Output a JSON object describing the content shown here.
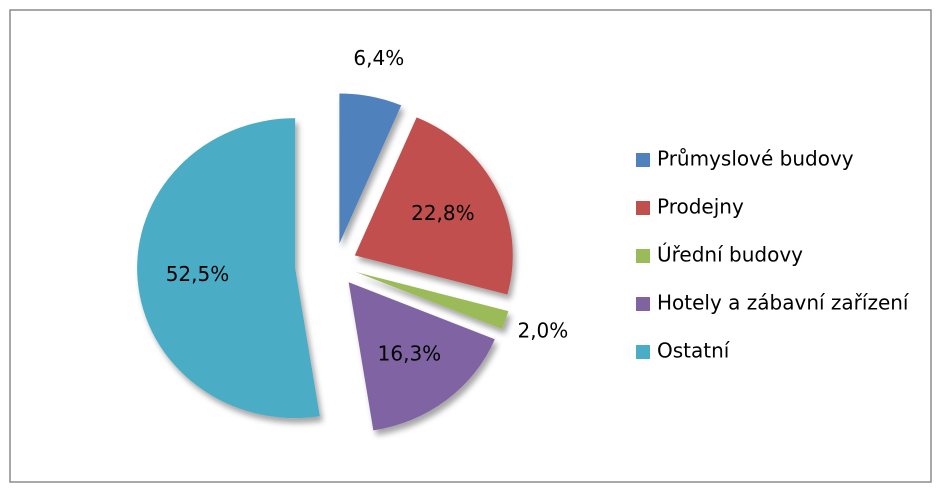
{
  "chart_data": {
    "type": "pie",
    "categories": [
      "Průmyslové budovy",
      "Prodejny",
      "Úřední budovy",
      "Hotely a zábavní zařízení",
      "Ostatní"
    ],
    "values": [
      6.4,
      22.8,
      2.0,
      16.3,
      52.5
    ],
    "value_labels": [
      "6,4%",
      "22,8%",
      "2,0%",
      "16,3%",
      "52,5%"
    ],
    "colors": [
      "#4f81bd",
      "#c0504d",
      "#9bbb59",
      "#8064a2",
      "#4bacc6"
    ],
    "legend": "right"
  }
}
